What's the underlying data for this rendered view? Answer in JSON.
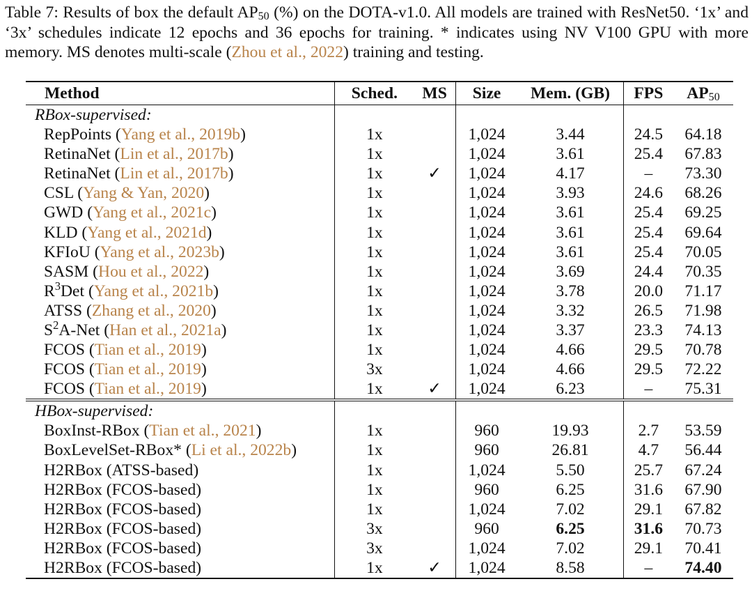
{
  "caption": {
    "p1": "Table 7: Results of box the default AP",
    "sub": "50",
    "p2": " (%) on the DOTA-v1.0. All models are trained with ResNet50. ‘1x’ and ‘3x’ schedules indicate 12 epochs and 36 epochs for training. * indicates using NV V100 GPU with more memory. MS denotes multi-scale (",
    "cite_author": "Zhou et al.",
    "cite_sep": ", ",
    "cite_year": "2022",
    "p3": ") training and testing."
  },
  "header": {
    "method": "Method",
    "sched": "Sched.",
    "ms": "MS",
    "size": "Size",
    "mem": "Mem. (GB)",
    "fps": "FPS",
    "ap": "AP",
    "ap_sub": "50"
  },
  "sections": [
    {
      "title": "RBox-supervised:",
      "rows": [
        {
          "name": "RepPoints",
          "author": "Yang et al.",
          "year": "2019b",
          "sched": "1x",
          "ms": "",
          "size": "1,024",
          "mem": "3.44",
          "fps": "24.5",
          "ap": "64.18"
        },
        {
          "name": "RetinaNet",
          "author": "Lin et al.",
          "year": "2017b",
          "sched": "1x",
          "ms": "",
          "size": "1,024",
          "mem": "3.61",
          "fps": "25.4",
          "ap": "67.83"
        },
        {
          "name": "RetinaNet",
          "author": "Lin et al.",
          "year": "2017b",
          "sched": "1x",
          "ms": "✓",
          "size": "1,024",
          "mem": "4.17",
          "fps": "–",
          "ap": "73.30"
        },
        {
          "name": "CSL",
          "author": "Yang & Yan",
          "year": "2020",
          "sched": "1x",
          "ms": "",
          "size": "1,024",
          "mem": "3.93",
          "fps": "24.6",
          "ap": "68.26"
        },
        {
          "name": "GWD",
          "author": "Yang et al.",
          "year": "2021c",
          "sched": "1x",
          "ms": "",
          "size": "1,024",
          "mem": "3.61",
          "fps": "25.4",
          "ap": "69.25"
        },
        {
          "name": "KLD",
          "author": "Yang et al.",
          "year": "2021d",
          "sched": "1x",
          "ms": "",
          "size": "1,024",
          "mem": "3.61",
          "fps": "25.4",
          "ap": "69.64"
        },
        {
          "name": "KFIoU",
          "author": "Yang et al.",
          "year": "2023b",
          "sched": "1x",
          "ms": "",
          "size": "1,024",
          "mem": "3.61",
          "fps": "25.4",
          "ap": "70.05"
        },
        {
          "name": "SASM",
          "author": "Hou et al.",
          "year": "2022",
          "sched": "1x",
          "ms": "",
          "size": "1,024",
          "mem": "3.69",
          "fps": "24.4",
          "ap": "70.35"
        },
        {
          "name": "R",
          "sup": "3",
          "name2": "Det",
          "author": "Yang et al.",
          "year": "2021b",
          "sched": "1x",
          "ms": "",
          "size": "1,024",
          "mem": "3.78",
          "fps": "20.0",
          "ap": "71.17"
        },
        {
          "name": "ATSS",
          "author": "Zhang et al.",
          "year": "2020",
          "sched": "1x",
          "ms": "",
          "size": "1,024",
          "mem": "3.32",
          "fps": "26.5",
          "ap": "71.98"
        },
        {
          "name": "S",
          "sup": "2",
          "name2": "A-Net",
          "author": "Han et al.",
          "year": "2021a",
          "sched": "1x",
          "ms": "",
          "size": "1,024",
          "mem": "3.37",
          "fps": "23.3",
          "ap": "74.13"
        },
        {
          "name": "FCOS",
          "author": "Tian et al.",
          "year": "2019",
          "sched": "1x",
          "ms": "",
          "size": "1,024",
          "mem": "4.66",
          "fps": "29.5",
          "ap": "70.78"
        },
        {
          "name": "FCOS",
          "author": "Tian et al.",
          "year": "2019",
          "sched": "3x",
          "ms": "",
          "size": "1,024",
          "mem": "4.66",
          "fps": "29.5",
          "ap": "72.22"
        },
        {
          "name": "FCOS",
          "author": "Tian et al.",
          "year": "2019",
          "sched": "1x",
          "ms": "✓",
          "size": "1,024",
          "mem": "6.23",
          "fps": "–",
          "ap": "75.31"
        }
      ]
    },
    {
      "title": "HBox-supervised:",
      "rows": [
        {
          "name": "BoxInst-RBox",
          "author": "Tian et al.",
          "year": "2021",
          "sched": "1x",
          "ms": "",
          "size": "960",
          "mem": "19.93",
          "fps": "2.7",
          "ap": "53.59"
        },
        {
          "name": "BoxLevelSet-RBox*",
          "author": "Li et al.",
          "year": "2022b",
          "sched": "1x",
          "ms": "",
          "size": "960",
          "mem": "26.81",
          "fps": "4.7",
          "ap": "56.44"
        },
        {
          "name": "H2RBox (ATSS-based)",
          "sched": "1x",
          "ms": "",
          "size": "1,024",
          "mem": "5.50",
          "fps": "25.7",
          "ap": "67.24"
        },
        {
          "name": "H2RBox (FCOS-based)",
          "sched": "1x",
          "ms": "",
          "size": "960",
          "mem": "6.25",
          "fps": "31.6",
          "ap": "67.90"
        },
        {
          "name": "H2RBox (FCOS-based)",
          "sched": "1x",
          "ms": "",
          "size": "1,024",
          "mem": "7.02",
          "fps": "29.1",
          "ap": "67.82"
        },
        {
          "name": "H2RBox (FCOS-based)",
          "sched": "3x",
          "ms": "",
          "size": "960",
          "mem": "6.25",
          "fps": "31.6",
          "ap": "70.73",
          "bold": [
            "mem",
            "fps"
          ]
        },
        {
          "name": "H2RBox (FCOS-based)",
          "sched": "3x",
          "ms": "",
          "size": "1,024",
          "mem": "7.02",
          "fps": "29.1",
          "ap": "70.41"
        },
        {
          "name": "H2RBox (FCOS-based)",
          "sched": "1x",
          "ms": "✓",
          "size": "1,024",
          "mem": "8.58",
          "fps": "–",
          "ap": "74.40",
          "bold": [
            "ap"
          ]
        }
      ]
    }
  ]
}
